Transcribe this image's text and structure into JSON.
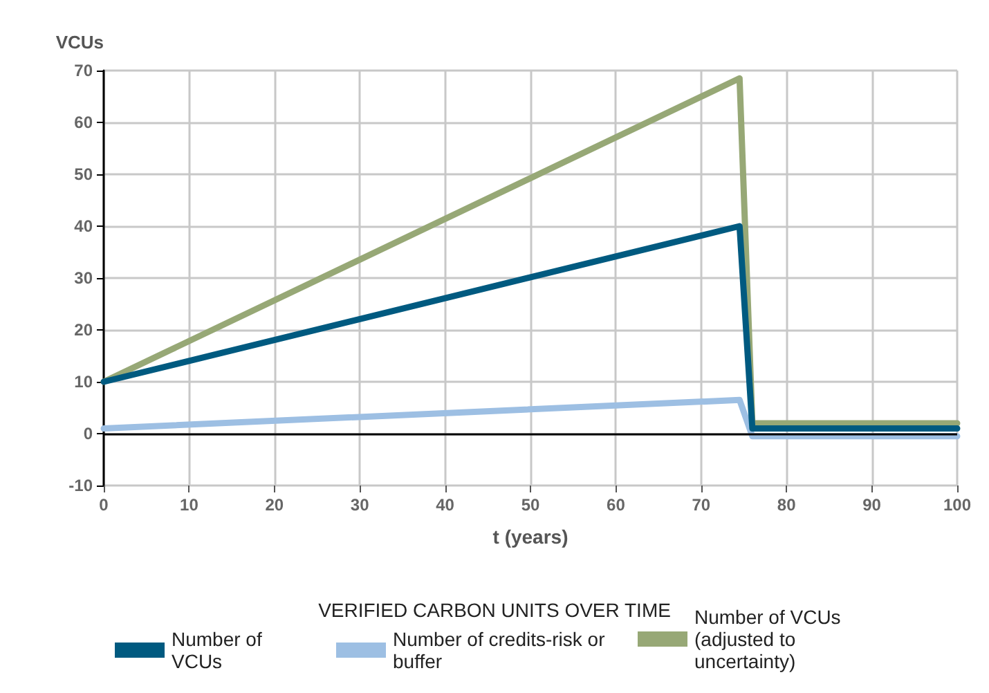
{
  "chart_data": {
    "type": "line",
    "ylabel": "VCUs",
    "xlabel": "t (years)",
    "legend_title": "VERIFIED CARBON UNITS OVER TIME",
    "legend": "bottom",
    "grid": true,
    "marker": "none",
    "line_style": "solid",
    "xlim": [
      0,
      100
    ],
    "xticks": [
      0,
      10,
      20,
      30,
      40,
      50,
      60,
      70,
      80,
      90,
      100
    ],
    "ylim": [
      -10,
      70
    ],
    "yticks": [
      -10,
      0,
      10,
      20,
      30,
      40,
      50,
      60,
      70
    ],
    "ref_lines": [
      {
        "axis": "y",
        "value": 0,
        "label": null,
        "color": "#000000"
      }
    ],
    "series": [
      {
        "name": "Number of VCUs (adjusted to uncertainty)",
        "color": "#97a876",
        "x": [
          0,
          74.5,
          76,
          100
        ],
        "values": [
          10,
          68.5,
          2,
          2
        ]
      },
      {
        "name": "Number of credits-risk or buffer",
        "color": "#9dbfe3",
        "x": [
          0,
          74.5,
          76,
          100
        ],
        "values": [
          1,
          6.5,
          -0.5,
          -0.5
        ]
      },
      {
        "name": "Number of VCUs",
        "color": "#005a80",
        "x": [
          0,
          74.5,
          76,
          100
        ],
        "values": [
          10,
          40,
          1,
          1
        ]
      }
    ]
  }
}
